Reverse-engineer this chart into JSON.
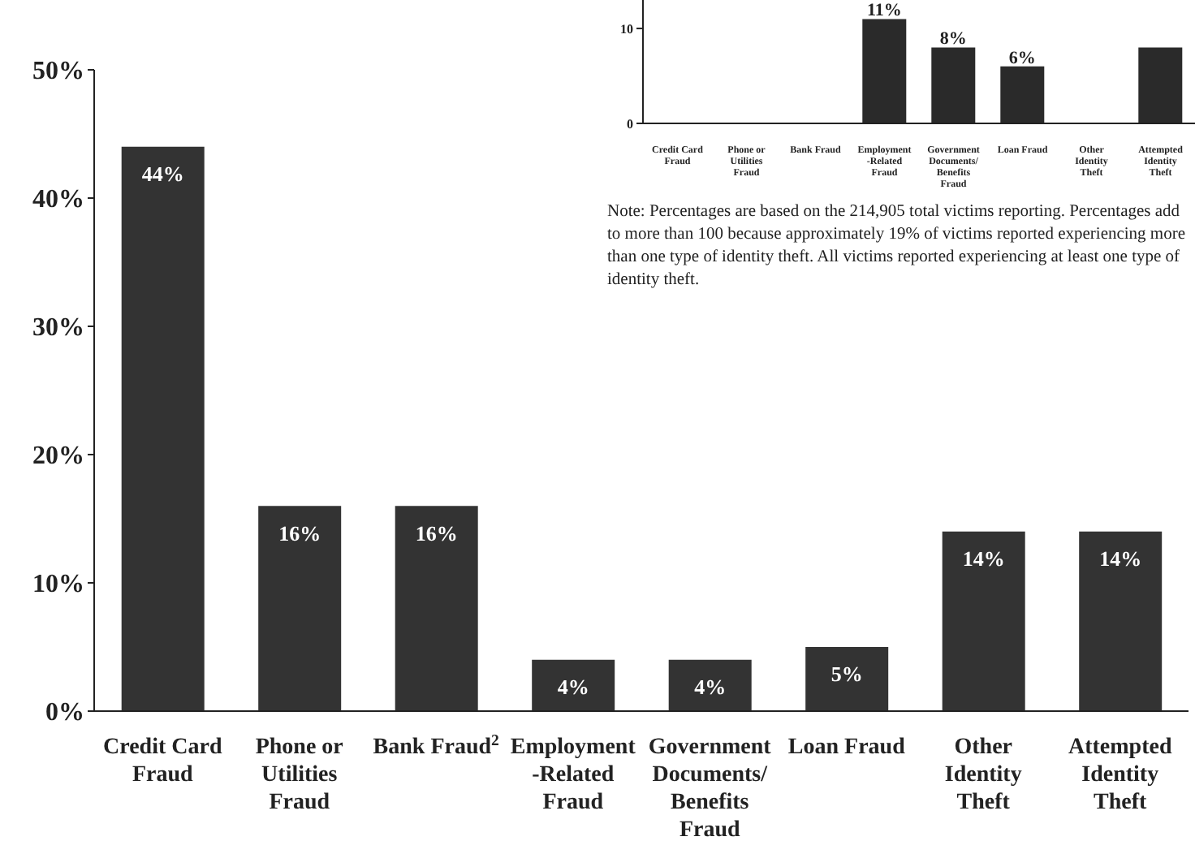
{
  "chart_data": [
    {
      "type": "bar",
      "categories": [
        "Credit Card Fraud",
        "Phone or Utilities Fraud",
        "Bank Fraud$^{2}$",
        "Employment-Related Fraud",
        "Government Documents/ Benefits Fraud",
        "Loan Fraud",
        "Other Identity Theft",
        "Attempted Identity Theft"
      ],
      "values": [
        44,
        16,
        16,
        4,
        4,
        5,
        14,
        14
      ],
      "color": "#333333",
      "value_labels": [
        "44%",
        "16%",
        "16%",
        "4%",
        "4%",
        "5%",
        "14%",
        "14%"
      ],
      "ylim": [
        0,
        50
      ],
      "yticks": [
        {
          "value": 0,
          "label": "0%"
        },
        {
          "value": 10,
          "label": "10%"
        },
        {
          "value": 20,
          "label": "20%"
        },
        {
          "value": 30,
          "label": "30%"
        },
        {
          "value": 40,
          "label": "40%"
        },
        {
          "value": 50,
          "label": "50%"
        }
      ],
      "grid": false,
      "legend": false
    },
    {
      "type": "bar",
      "categories": [
        "Credit Card Fraud",
        "Phone or Utilities Fraud",
        "Bank Fraud",
        "Employment-Related Fraud",
        "Government Documents/ Benefits Fraud",
        "Loan Fraud",
        "Other Identity Theft",
        "Attempted Identity Theft"
      ],
      "values": [
        null,
        null,
        null,
        11,
        8,
        6,
        null,
        8
      ],
      "color": "#2a2a2a",
      "value_labels": [
        null,
        null,
        null,
        "11%",
        "8%",
        "6%",
        null,
        null
      ],
      "ylim": [
        0,
        13
      ],
      "yticks": [
        0,
        10
      ],
      "grid": false,
      "legend": false,
      "annotations": [
        "Note: Percentages are based on the 214,905 total victims reporting. Percentages add to more than 100 because approximately 19% of victims reported experiencing more than one type of identity theft.  All victims reported experiencing at least one type of identity theft."
      ]
    }
  ]
}
